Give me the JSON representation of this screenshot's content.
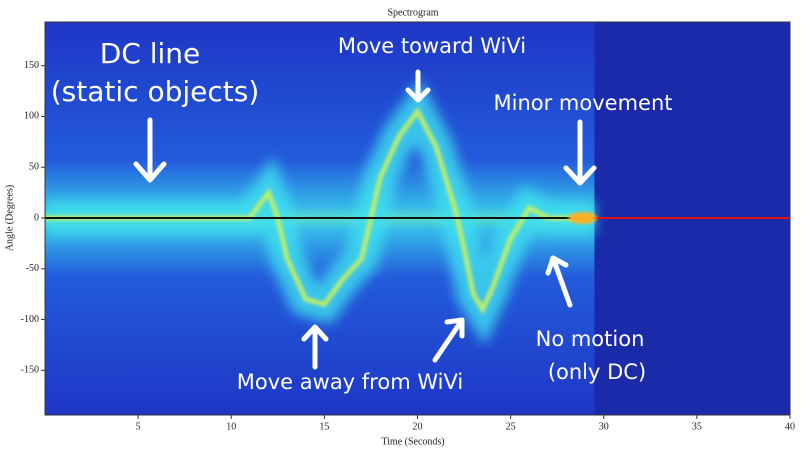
{
  "chart_data": {
    "type": "spectrogram",
    "title": "Spectrogram",
    "xlabel": "Time (Seconds)",
    "ylabel": "Angle (Degrees)",
    "xlim": [
      0,
      40
    ],
    "ylim": [
      -194,
      193
    ],
    "xticks": [
      5,
      10,
      15,
      20,
      25,
      30,
      35,
      40
    ],
    "yticks": [
      -150,
      -100,
      -50,
      0,
      50,
      100,
      150
    ],
    "x": [
      0,
      11,
      12,
      12.5,
      13,
      14,
      15,
      16,
      17,
      17.5,
      18,
      19,
      20,
      21,
      22,
      22.5,
      23,
      23.5,
      24,
      25,
      26,
      27,
      29.5
    ],
    "values": [
      0,
      0,
      25,
      0,
      -40,
      -80,
      -85,
      -60,
      -40,
      0,
      40,
      80,
      105,
      70,
      10,
      -30,
      -75,
      -90,
      -70,
      -20,
      10,
      0,
      0
    ],
    "dc_line": {
      "x": [
        0,
        40
      ],
      "value": 0
    },
    "annotations": [
      "DC line",
      "(static objects)",
      "Move toward WiVi",
      "Minor movement",
      "No motion",
      "(only DC)",
      "Move away from WiVi"
    ]
  }
}
